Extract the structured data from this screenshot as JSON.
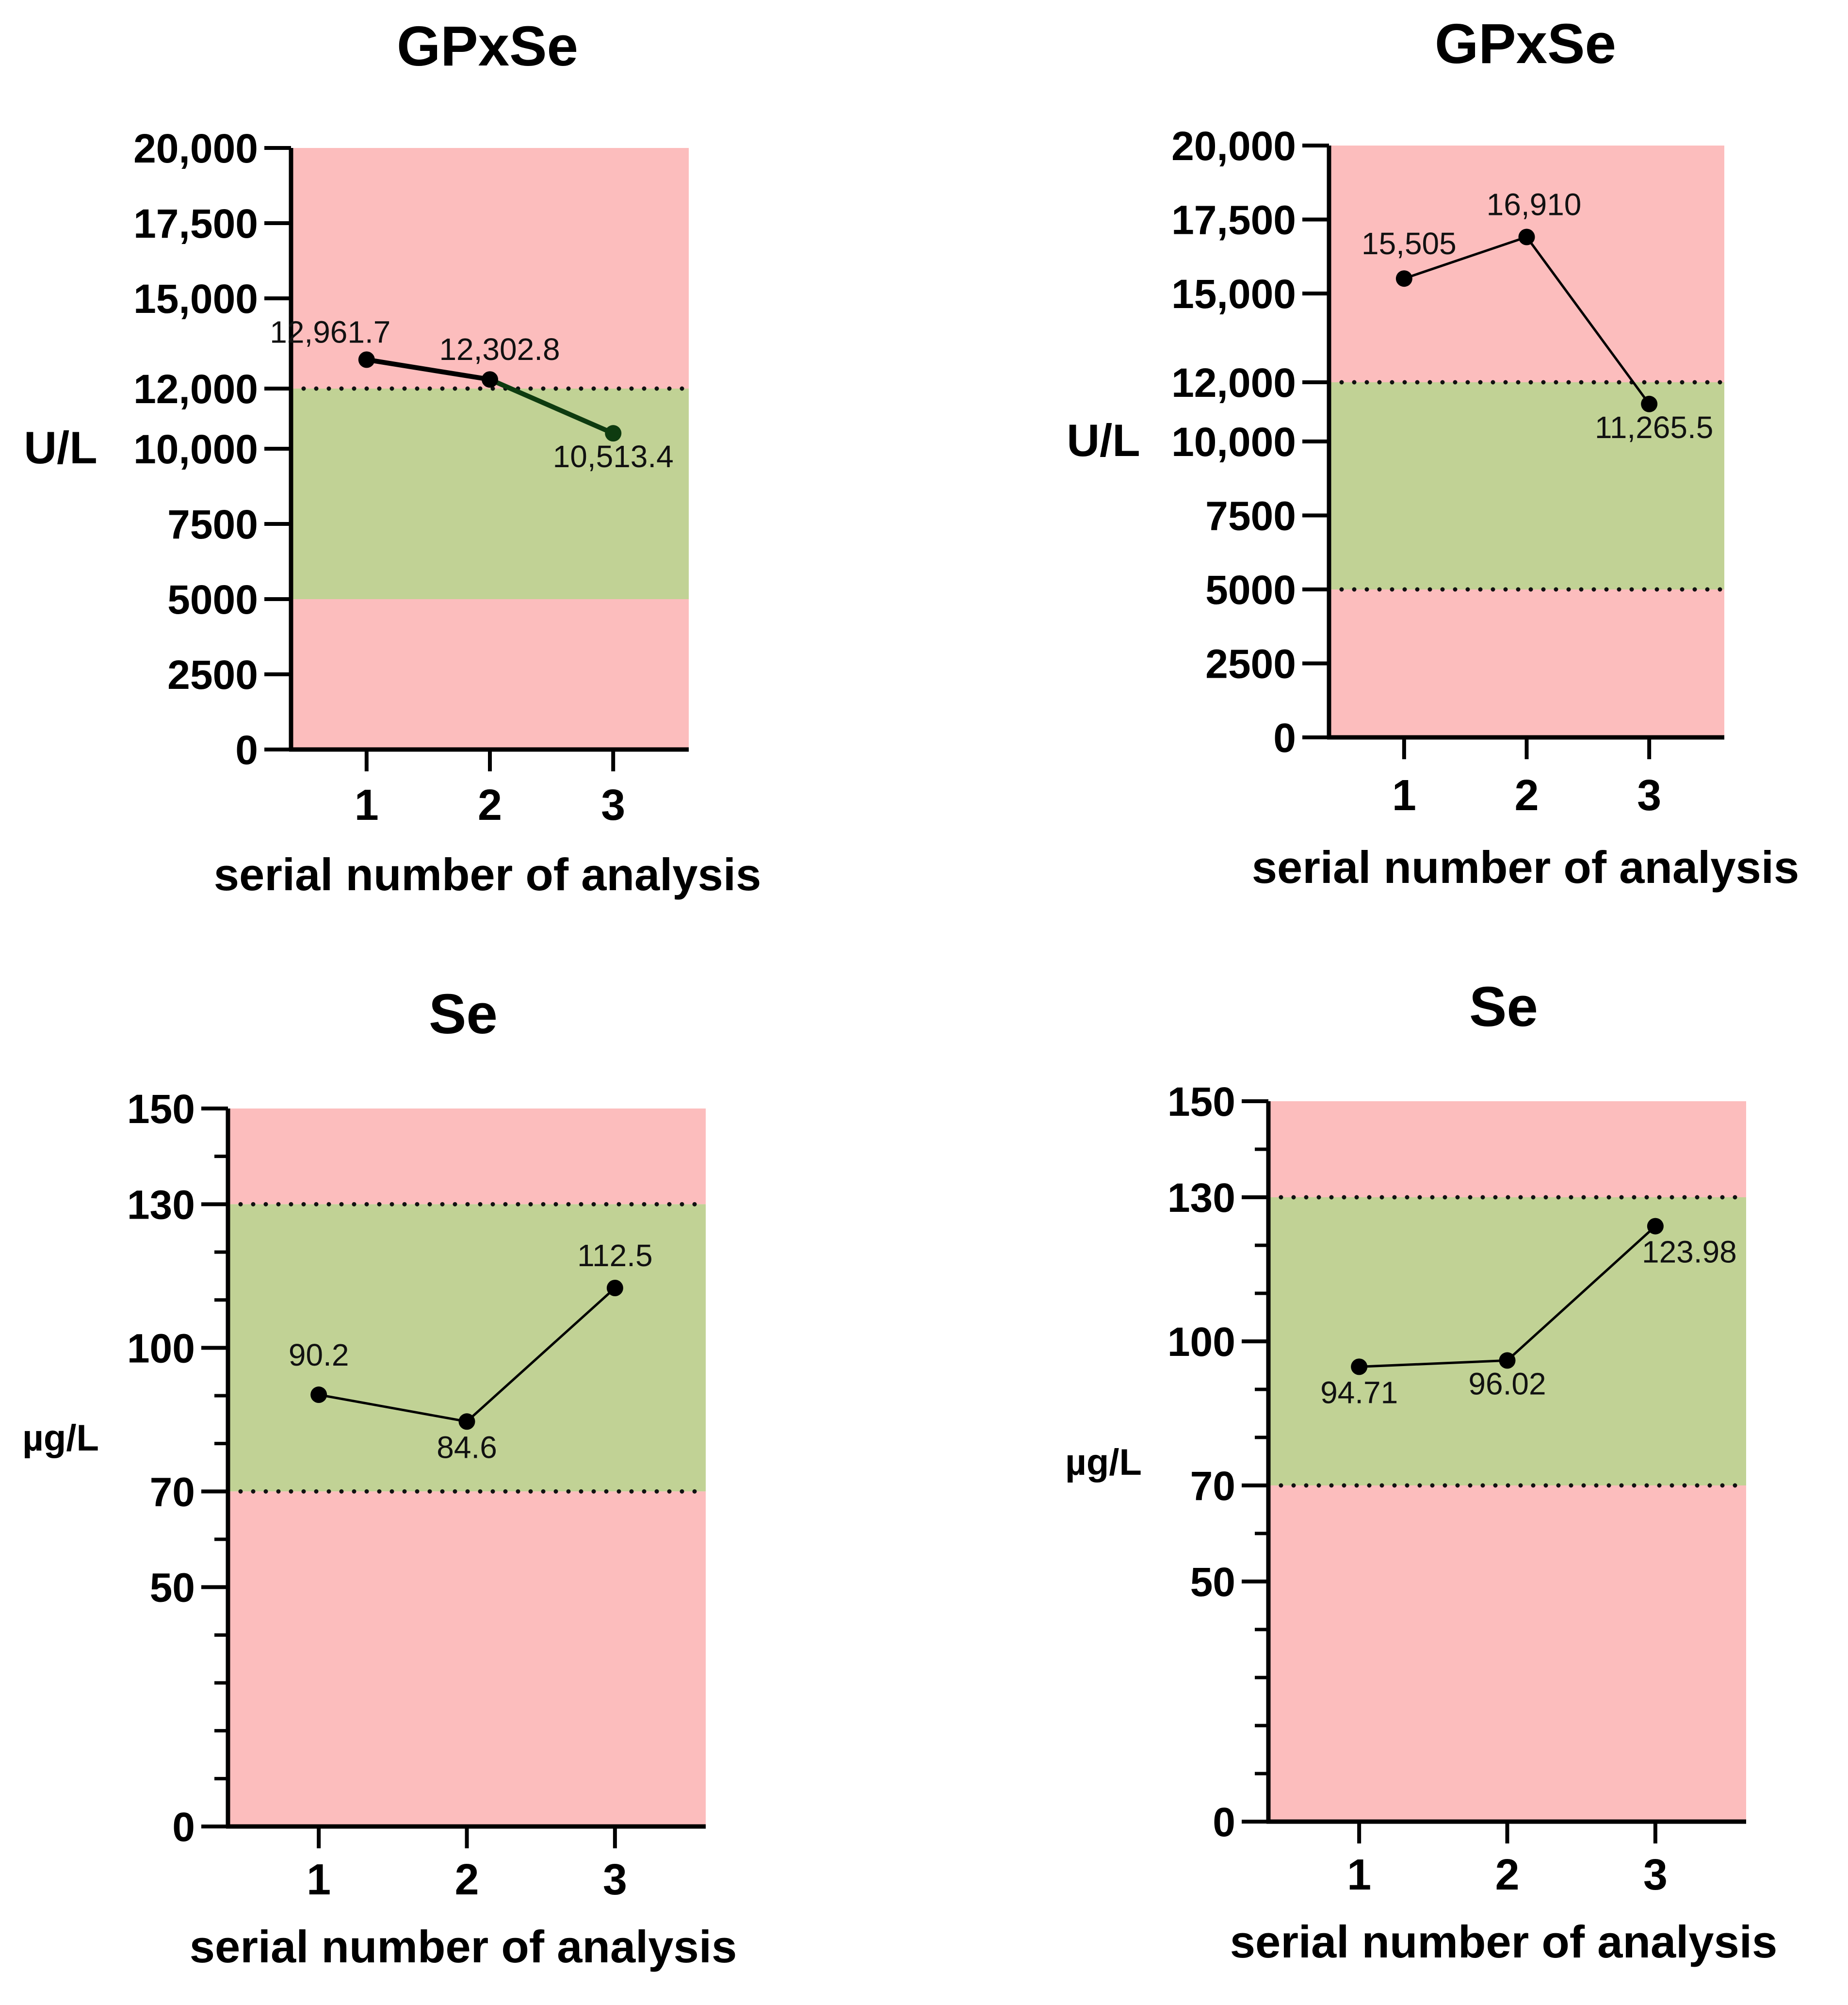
{
  "colors": {
    "out_of_range": "#fcbdbd",
    "in_range": "#c1d295",
    "axis": "#000000",
    "line": "#000000"
  },
  "chart_data": [
    {
      "type": "line",
      "title": "GPxSe",
      "xlabel": "serial number of analysis",
      "ylabel": "U/L",
      "x": [
        1,
        2,
        3
      ],
      "x_tick_labels": [
        "1",
        "2",
        "3"
      ],
      "values": [
        12961.7,
        12302.8,
        10513.4
      ],
      "data_labels": [
        "12,961.7",
        "12,302.8",
        "10,513.4"
      ],
      "ylim": [
        0,
        20000
      ],
      "y_ticks": [
        0,
        2500,
        5000,
        7500,
        10000,
        12000,
        15000,
        17500,
        20000
      ],
      "y_tick_labels": [
        "0",
        "2500",
        "5000",
        "7500",
        "10,000",
        "12,000",
        "15,000",
        "17,500",
        "20,000"
      ],
      "reference_range": [
        5000,
        12000
      ],
      "reference_lines": [
        12000
      ]
    },
    {
      "type": "line",
      "title": "GPxSe",
      "xlabel": "serial number of analysis",
      "ylabel": "U/L",
      "x": [
        1,
        2,
        3
      ],
      "x_tick_labels": [
        "1",
        "2",
        "3"
      ],
      "values": [
        15505,
        16910,
        11265.5
      ],
      "data_labels": [
        "15,505",
        "16,910",
        "11,265.5"
      ],
      "ylim": [
        0,
        20000
      ],
      "y_ticks": [
        0,
        2500,
        5000,
        7500,
        10000,
        12000,
        15000,
        17500,
        20000
      ],
      "y_tick_labels": [
        "0",
        "2500",
        "5000",
        "7500",
        "10,000",
        "12,000",
        "15,000",
        "17,500",
        "20,000"
      ],
      "reference_range": [
        5000,
        12000
      ],
      "reference_lines": [
        5000,
        12000
      ]
    },
    {
      "type": "line",
      "title": "Se",
      "xlabel": "serial number of analysis",
      "ylabel": "µg/L",
      "x": [
        1,
        2,
        3
      ],
      "x_tick_labels": [
        "1",
        "2",
        "3"
      ],
      "values": [
        90.2,
        84.6,
        112.5
      ],
      "data_labels": [
        "90.2",
        "84.6",
        "112.5"
      ],
      "ylim": [
        0,
        150
      ],
      "y_ticks": [
        0,
        50,
        70,
        100,
        130,
        150
      ],
      "y_tick_labels": [
        "0",
        "50",
        "70",
        "100",
        "130",
        "150"
      ],
      "reference_range": [
        70,
        130
      ],
      "reference_lines": [
        70,
        130
      ]
    },
    {
      "type": "line",
      "title": "Se",
      "xlabel": "serial number of analysis",
      "ylabel": "µg/L",
      "x": [
        1,
        2,
        3
      ],
      "x_tick_labels": [
        "1",
        "2",
        "3"
      ],
      "values": [
        94.71,
        96.02,
        123.98
      ],
      "data_labels": [
        "94.71",
        "96.02",
        "123.98"
      ],
      "ylim": [
        0,
        150
      ],
      "y_ticks": [
        0,
        50,
        70,
        100,
        130,
        150
      ],
      "y_tick_labels": [
        "0",
        "50",
        "70",
        "100",
        "130",
        "150"
      ],
      "reference_range": [
        70,
        130
      ],
      "reference_lines": [
        70,
        130
      ]
    }
  ]
}
